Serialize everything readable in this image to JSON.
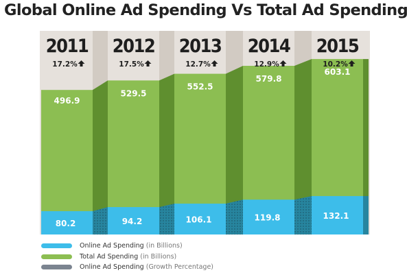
{
  "chart_data": {
    "type": "bar",
    "title": "Global Online Ad Spending Vs Total Ad Spending",
    "categories": [
      "2011",
      "2012",
      "2013",
      "2014",
      "2015"
    ],
    "series": [
      {
        "name": "Online Ad Spending",
        "values": [
          80.2,
          94.2,
          106.1,
          119.8,
          132.1
        ],
        "color": "#3dbdea"
      },
      {
        "name": "Total Ad Spending",
        "values": [
          496.9,
          529.5,
          552.5,
          579.8,
          603.1
        ],
        "color": "#8cbe52"
      },
      {
        "name": "Online Ad Spending",
        "values": [
          17.2,
          17.5,
          12.7,
          12.9,
          10.2
        ],
        "color": "#7b8490"
      }
    ],
    "value_labels": {
      "online": [
        "80.2",
        "94.2",
        "106.1",
        "119.8",
        "132.1"
      ],
      "total": [
        "496.9",
        "529.5",
        "552.5",
        "579.8",
        "603.1"
      ],
      "growth": [
        "17.2%",
        "17.5%",
        "12.7%",
        "12.9%",
        "10.2%"
      ]
    },
    "ylim": [
      0,
      700
    ],
    "legend_position": "bottom-left",
    "grid": false
  },
  "legend": [
    {
      "label": "Online Ad Spending",
      "note": "(in Billions)",
      "color": "#3dbdea"
    },
    {
      "label": "Total Ad Spending",
      "note": "(in Billions)",
      "color": "#8cbe52"
    },
    {
      "label": "Online Ad Spending",
      "note": "(Growth Percentage)",
      "color": "#7b8490"
    }
  ],
  "colors": {
    "total_fill": "#8cbe52",
    "total_dark": "#5f8f2f",
    "online_fill": "#3dbdea",
    "online_dark": "#27859f",
    "background_column": "#e6e1dc",
    "background_connector": "#d2cbc3",
    "text_dark": "#1e1e1e",
    "text_light": "#ffffff"
  }
}
